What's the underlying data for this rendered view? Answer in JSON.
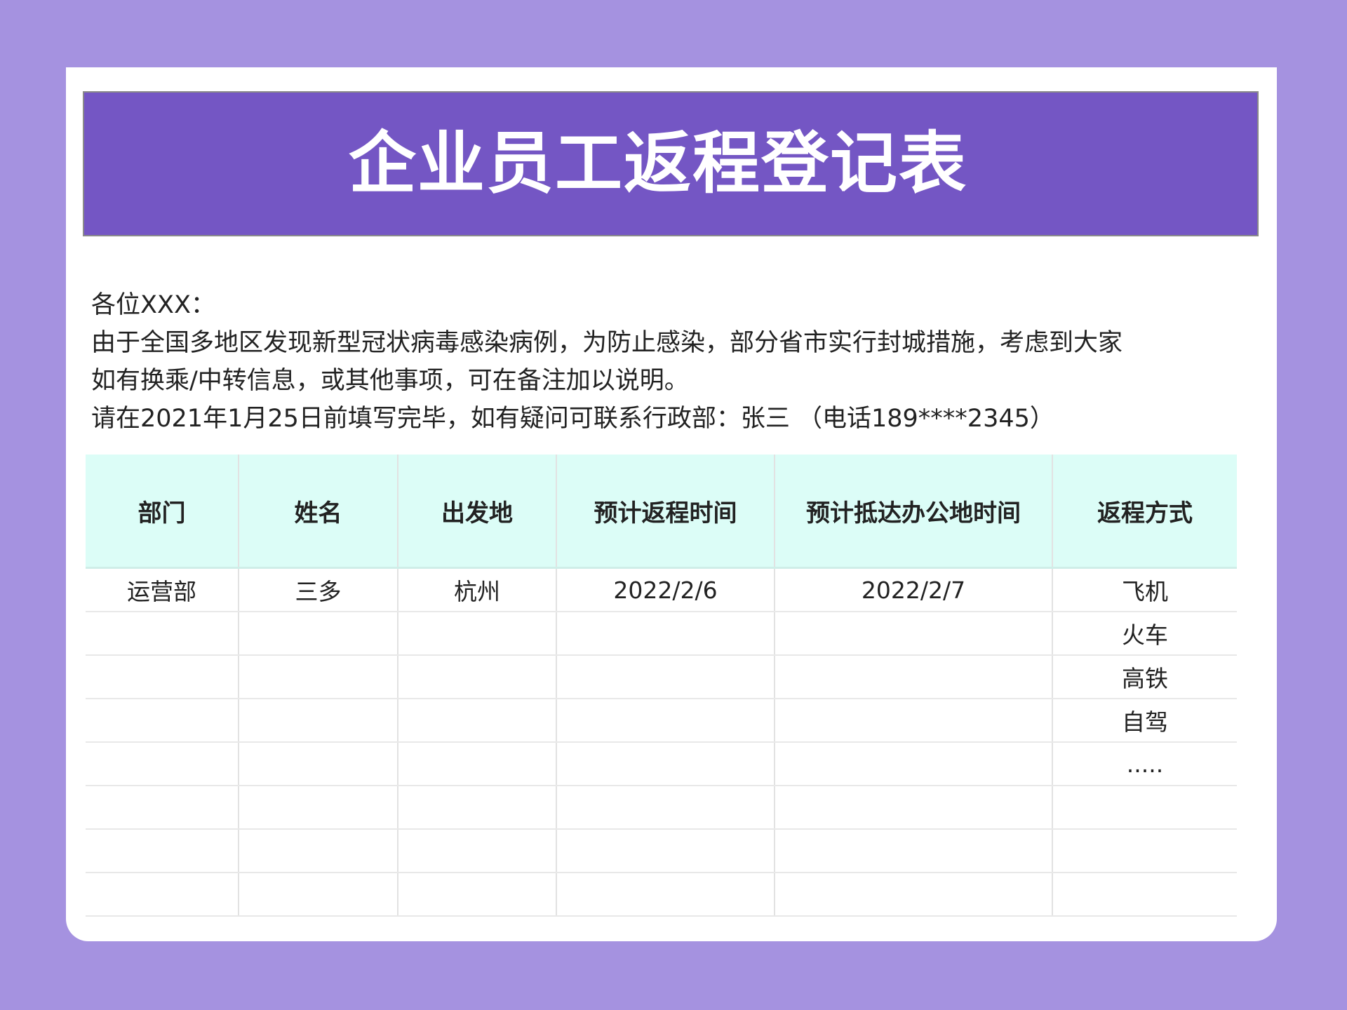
{
  "title": "企业员工返程登记表",
  "notice": {
    "greeting": "各位XXX：",
    "line1": "由于全国多地区发现新型冠状病毒感染病例，为防止感染，部分省市实行封城措施，考虑到大家",
    "line2": "如有换乘/中转信息，或其他事项，可在备注加以说明。",
    "line3": "请在2021年1月25日前填写完毕，如有疑问可联系行政部：张三 （电话189****2345）"
  },
  "table": {
    "headers": [
      "部门",
      "姓名",
      "出发地",
      "预计返程时间",
      "预计抵达办公地时间",
      "返程方式"
    ],
    "rows": [
      [
        "运营部",
        "三多",
        "杭州",
        "2022/2/6",
        "2022/2/7",
        "飞机"
      ],
      [
        "",
        "",
        "",
        "",
        "",
        "火车"
      ],
      [
        "",
        "",
        "",
        "",
        "",
        "高铁"
      ],
      [
        "",
        "",
        "",
        "",
        "",
        "自驾"
      ],
      [
        "",
        "",
        "",
        "",
        "",
        "....."
      ],
      [
        "",
        "",
        "",
        "",
        "",
        ""
      ],
      [
        "",
        "",
        "",
        "",
        "",
        ""
      ],
      [
        "",
        "",
        "",
        "",
        "",
        ""
      ]
    ]
  },
  "colors": {
    "background": "#a592e0",
    "banner": "#7456c4",
    "header_bg": "#dcfdf7"
  }
}
